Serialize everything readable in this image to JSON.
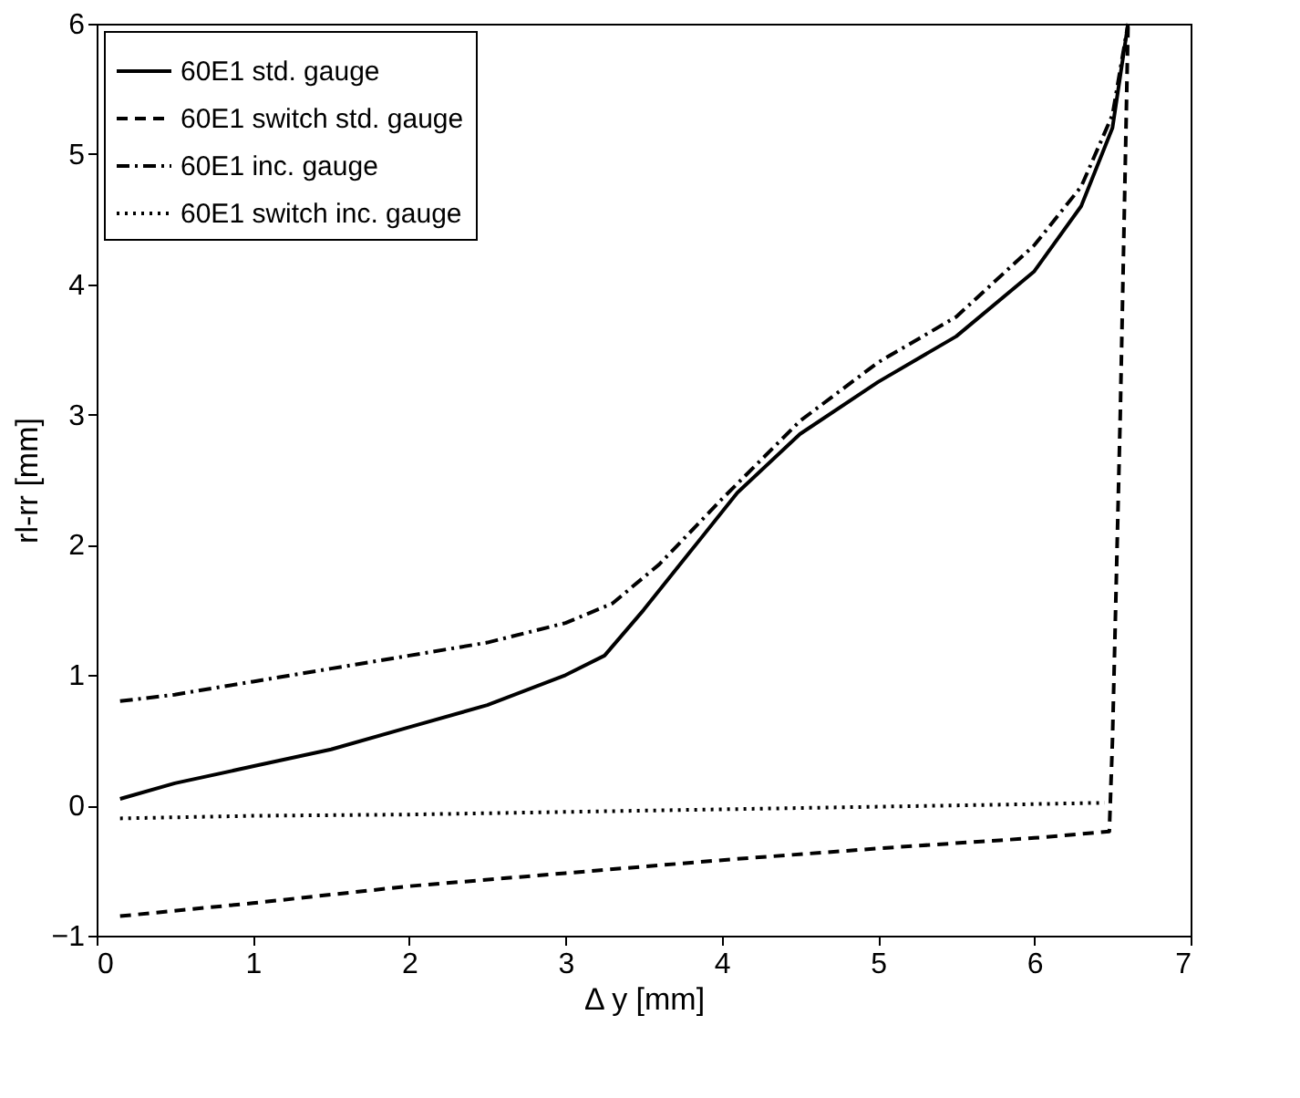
{
  "chart_data": {
    "type": "line",
    "xlabel": "Δ y [mm]",
    "ylabel": "rl-rr [mm]",
    "xlim": [
      0,
      7
    ],
    "ylim": [
      -1,
      6
    ],
    "xticks": [
      0,
      1,
      2,
      3,
      4,
      5,
      6,
      7
    ],
    "yticks": [
      -1,
      0,
      1,
      2,
      3,
      4,
      5,
      6
    ],
    "grid": false,
    "legend": "top left",
    "marker": "none",
    "series": [
      {
        "name": "60E1 std. gauge",
        "color": "#000000",
        "line_style": "solid",
        "x": [
          0.15,
          0.5,
          1,
          1.5,
          2,
          2.5,
          3,
          3.25,
          3.5,
          3.8,
          4.1,
          4.5,
          5,
          5.5,
          6,
          6.3,
          6.5,
          6.6
        ],
        "values": [
          0.05,
          0.17,
          0.3,
          0.43,
          0.6,
          0.77,
          1.0,
          1.15,
          1.5,
          1.95,
          2.4,
          2.85,
          3.25,
          3.6,
          4.1,
          4.6,
          5.2,
          6
        ]
      },
      {
        "name": "60E1 switch std. gauge",
        "color": "#000000",
        "line_style": "dashed",
        "x": [
          0.15,
          1,
          2,
          3,
          4,
          5,
          6,
          6.48,
          6.5,
          6.55,
          6.6
        ],
        "values": [
          -0.85,
          -0.75,
          -0.62,
          -0.52,
          -0.42,
          -0.33,
          -0.25,
          -0.2,
          0.5,
          3,
          6
        ]
      },
      {
        "name": "60E1 inc. gauge",
        "color": "#000000",
        "line_style": "dashdot",
        "x": [
          0.15,
          0.5,
          1,
          1.5,
          2,
          2.5,
          3,
          3.3,
          3.6,
          4,
          4.5,
          5,
          5.5,
          6,
          6.3,
          6.5,
          6.6
        ],
        "values": [
          0.8,
          0.85,
          0.95,
          1.05,
          1.15,
          1.25,
          1.4,
          1.55,
          1.85,
          2.35,
          2.95,
          3.4,
          3.75,
          4.3,
          4.75,
          5.3,
          6
        ]
      },
      {
        "name": "60E1 switch inc. gauge",
        "color": "#000000",
        "line_style": "dotted",
        "x": [
          0.15,
          1,
          2,
          3,
          4,
          5,
          6,
          6.45
        ],
        "values": [
          -0.1,
          -0.08,
          -0.07,
          -0.05,
          -0.03,
          -0.01,
          0.01,
          0.02
        ]
      }
    ]
  }
}
